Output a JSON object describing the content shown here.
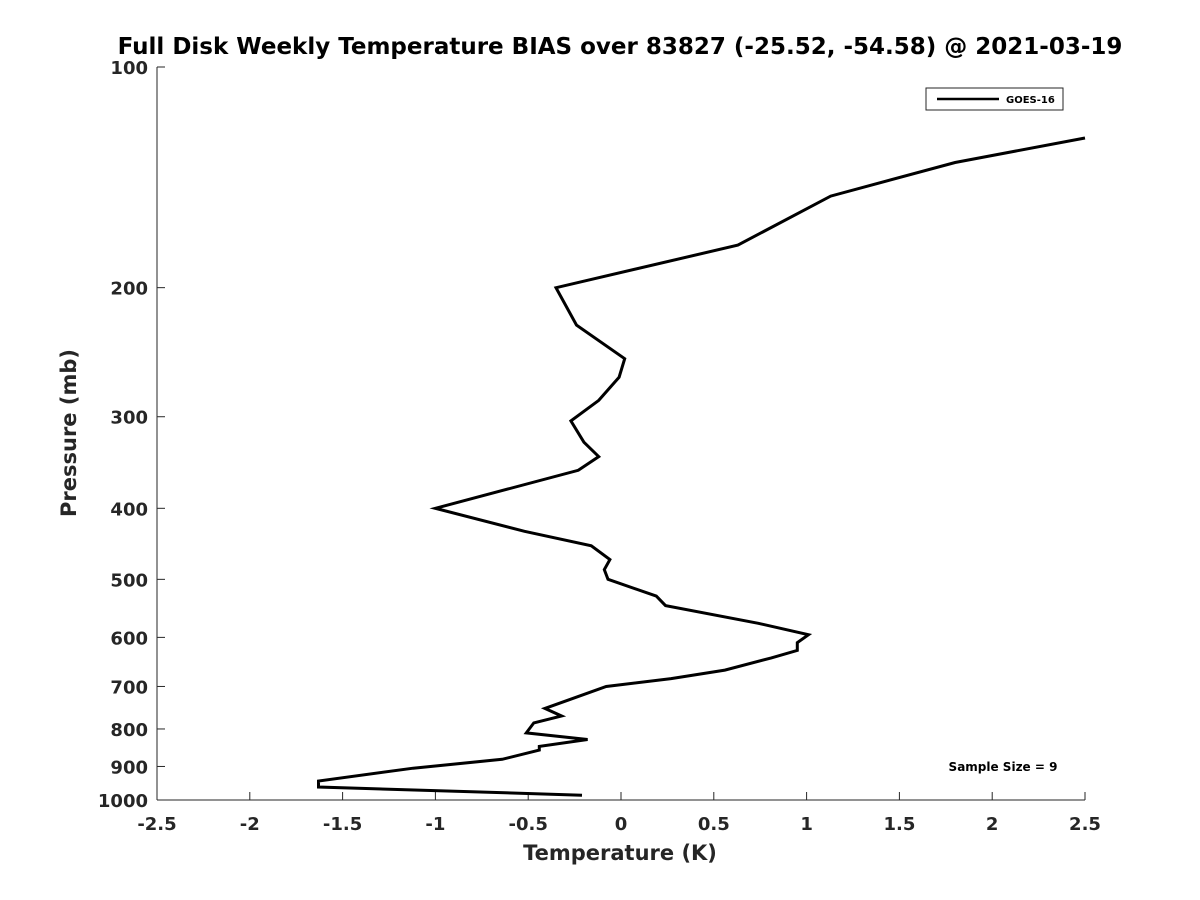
{
  "chart_data": {
    "type": "line",
    "title": "Full Disk Weekly Temperature BIAS over 83827 (-25.52, -54.58) @ 2021-03-19",
    "xlabel": "Temperature (K)",
    "ylabel": "Pressure (mb)",
    "xlim": [
      -2.5,
      2.5
    ],
    "ylim": [
      100,
      1000
    ],
    "y_scale": "log",
    "y_reversed": true,
    "x_ticks": [
      -2.5,
      -2,
      -1.5,
      -1,
      -0.5,
      0,
      0.5,
      1,
      1.5,
      2,
      2.5
    ],
    "x_tick_labels": [
      "-2.5",
      "-2",
      "-1.5",
      "-1",
      "-0.5",
      "0",
      "0.5",
      "1",
      "1.5",
      "2",
      "2.5"
    ],
    "y_ticks": [
      100,
      200,
      300,
      400,
      500,
      600,
      700,
      800,
      900,
      1000
    ],
    "y_tick_labels": [
      "100",
      "200",
      "300",
      "400",
      "500",
      "600",
      "700",
      "800",
      "900",
      "1000"
    ],
    "grid": false,
    "legend_position": "top-right",
    "series": [
      {
        "name": "GOES-16",
        "color": "#000000",
        "points": [
          [
            2.5,
            125
          ],
          [
            1.8,
            135
          ],
          [
            1.13,
            150
          ],
          [
            0.63,
            175
          ],
          [
            -0.35,
            200
          ],
          [
            -0.24,
            225
          ],
          [
            0.02,
            250
          ],
          [
            -0.01,
            265
          ],
          [
            -0.12,
            285
          ],
          [
            -0.27,
            304
          ],
          [
            -0.2,
            325
          ],
          [
            -0.12,
            340
          ],
          [
            -0.23,
            355
          ],
          [
            -1.0,
            400
          ],
          [
            -0.52,
            430
          ],
          [
            -0.16,
            450
          ],
          [
            -0.06,
            470
          ],
          [
            -0.09,
            485
          ],
          [
            -0.07,
            500
          ],
          [
            0.19,
            527
          ],
          [
            0.24,
            543
          ],
          [
            0.74,
            574
          ],
          [
            1.01,
            595
          ],
          [
            0.95,
            610
          ],
          [
            0.95,
            625
          ],
          [
            0.81,
            640
          ],
          [
            0.56,
            665
          ],
          [
            0.27,
            683
          ],
          [
            -0.08,
            700
          ],
          [
            -0.28,
            730
          ],
          [
            -0.41,
            750
          ],
          [
            -0.32,
            768
          ],
          [
            -0.47,
            785
          ],
          [
            -0.51,
            810
          ],
          [
            -0.18,
            827
          ],
          [
            -0.44,
            845
          ],
          [
            -0.44,
            855
          ],
          [
            -0.64,
            880
          ],
          [
            -1.12,
            905
          ],
          [
            -1.63,
            942
          ],
          [
            -1.63,
            960
          ],
          [
            -0.21,
            985
          ]
        ]
      }
    ],
    "annotation": "Sample Size = 9"
  }
}
